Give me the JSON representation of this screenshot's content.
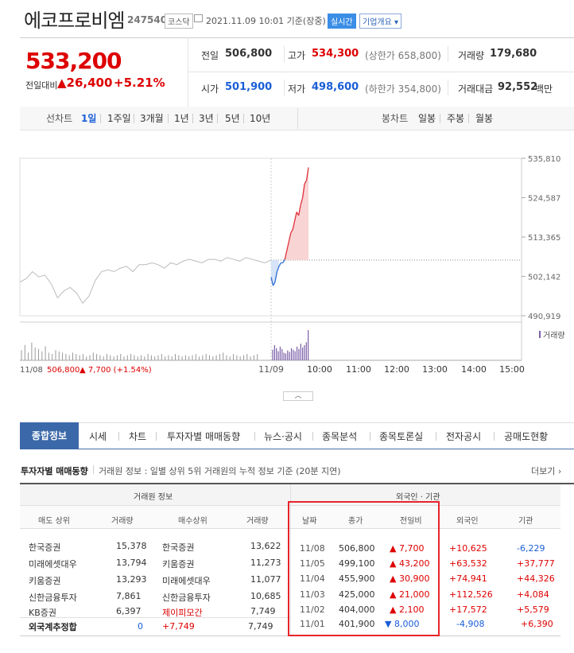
{
  "header": {
    "company_name": "에코프로비엠",
    "code": "247540",
    "market": "코스닥",
    "as_of": "2021.11.09 10:01 기준(장중)",
    "realtime_button": "실시간",
    "company_info_button": "기업개요 ▾"
  },
  "quote": {
    "price": "533,200",
    "diff_label": "전일대비",
    "diff": "▲26,400",
    "rate": "+5.21%",
    "prev_label": "전일",
    "prev": "506,800",
    "high_label": "고가",
    "high": "534,300",
    "upper_limit": "(상한가 658,800)",
    "volume_label": "거래량",
    "volume": "179,680",
    "open_label": "시가",
    "open": "501,900",
    "low_label": "저가",
    "low": "498,600",
    "lower_limit": "(하한가 354,800)",
    "amount_label": "거래대금",
    "amount": "92,552",
    "amount_unit": "백만"
  },
  "period_bar": {
    "line_chart_label": "선차트",
    "periods": [
      "1일",
      "1주일",
      "3개월",
      "1년",
      "3년",
      "5년",
      "10년"
    ],
    "active_period": "1일",
    "candle_chart_label": "봉차트",
    "candles": [
      "일봉",
      "주봉",
      "월봉"
    ]
  },
  "chart_data": {
    "type": "line",
    "y_ticks": [
      "535,810",
      "524,587",
      "513,365",
      "502,142",
      "490,919"
    ],
    "ylim": [
      490919,
      535810
    ],
    "x_ticks": [
      "11/09",
      "10:00",
      "11:00",
      "12:00",
      "13:00",
      "14:00",
      "15:00"
    ],
    "prev_close": 506800,
    "previous_day_series": [
      500500,
      501500,
      503500,
      502000,
      502500,
      500000,
      496000,
      498000,
      499000,
      497500,
      494500,
      496500,
      501000,
      503500,
      504000,
      503500,
      504500,
      505000,
      503500,
      505500,
      505500,
      506000,
      505500,
      504500,
      506000,
      505500,
      506500,
      507000,
      506500,
      506000,
      507000,
      507000,
      506500,
      507500,
      507000,
      506500,
      507500,
      507000,
      506500,
      506000,
      506800
    ],
    "today_series": [
      501900,
      499500,
      500500,
      503500,
      505000,
      506000,
      506000,
      507000,
      509500,
      512000,
      514500,
      515500,
      518000,
      520500,
      519500,
      522500,
      524500,
      528500,
      529500,
      533200
    ],
    "volume_label": "거래량",
    "footer_date": "11/08",
    "footer_value": "506,800",
    "footer_change": "▲ 7,700 (+1.54%)"
  },
  "tabs": [
    "종합정보",
    "시세",
    "차트",
    "투자자별 매매동향",
    "뉴스·공시",
    "종목분석",
    "종목토론실",
    "전자공시",
    "공매도현황"
  ],
  "investor": {
    "title": "투자자별 매매동향",
    "description": "거래원 정보 : 일별 상위 5위 거래원의 누적 정보 기준 (20분 지연)",
    "more": "더보기 ›",
    "broker_header": "거래원 정보",
    "foreign_header": "외국인 · 기관",
    "columns": [
      "매도 상위",
      "거래량",
      "매수상위",
      "거래량",
      "날짜",
      "종가",
      "전일비",
      "외국인",
      "기관"
    ],
    "rows": [
      {
        "sell": "한국증권",
        "sell_vol": "15,378",
        "buy": "한국증권",
        "buy_vol": "13,622",
        "date": "11/08",
        "close": "506,800",
        "change": "▲ 7,700",
        "foreign": "+10,625",
        "inst": "-6,229"
      },
      {
        "sell": "미래에셋대우",
        "sell_vol": "13,794",
        "buy": "키움증권",
        "buy_vol": "11,273",
        "date": "11/05",
        "close": "499,100",
        "change": "▲ 43,200",
        "foreign": "+63,532",
        "inst": "+37,777"
      },
      {
        "sell": "키움증권",
        "sell_vol": "13,293",
        "buy": "미래에셋대우",
        "buy_vol": "11,077",
        "date": "11/04",
        "close": "455,900",
        "change": "▲ 30,900",
        "foreign": "+74,941",
        "inst": "+44,326"
      },
      {
        "sell": "신한금융투자",
        "sell_vol": "7,861",
        "buy": "신한금융투자",
        "buy_vol": "10,685",
        "date": "11/03",
        "close": "425,000",
        "change": "▲ 21,000",
        "foreign": "+112,526",
        "inst": "+4,084"
      },
      {
        "sell": "KB증권",
        "sell_vol": "6,397",
        "buy": "제이피모간",
        "buy_vol": "7,749",
        "date": "11/02",
        "close": "404,000",
        "change": "▲ 2,100",
        "foreign": "+17,572",
        "inst": "+5,579"
      }
    ],
    "total_row": {
      "label": "외국계추정합",
      "sell_vol": "0",
      "buy": "+7,749",
      "buy_vol": "7,749",
      "date": "11/01",
      "close": "401,900",
      "change": "▼ 8,000",
      "foreign": "-4,908",
      "inst": "+6,390"
    }
  }
}
